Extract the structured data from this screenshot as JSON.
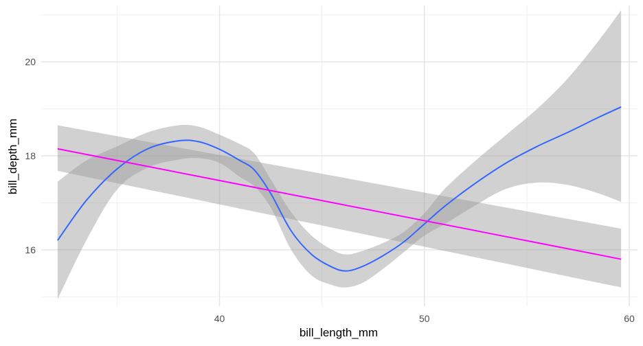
{
  "chart_data": {
    "type": "line",
    "title": "",
    "xlabel": "bill_length_mm",
    "ylabel": "bill_depth_mm",
    "xlim": [
      31.3,
      60.4
    ],
    "ylim": [
      14.8,
      21.2
    ],
    "x_major_ticks": [
      40,
      50,
      60
    ],
    "x_minor_ticks": [
      35,
      45,
      55
    ],
    "y_major_ticks": [
      16,
      18,
      20
    ],
    "y_minor_ticks": [
      15,
      17,
      19,
      21
    ],
    "x_tick_labels": [
      "40",
      "50",
      "60"
    ],
    "y_tick_labels": [
      "16",
      "18",
      "20"
    ],
    "grid": true,
    "legend": "none",
    "series": [
      {
        "kind": "loess",
        "color": "#3366FF",
        "band_color": "#999999",
        "x": [
          32.1,
          33.5,
          35.0,
          36.5,
          38.0,
          39.0,
          40.0,
          41.0,
          41.7,
          42.5,
          43.5,
          44.5,
          45.5,
          46.2,
          47.0,
          48.0,
          49.0,
          50.0,
          51.0,
          52.5,
          54.0,
          55.5,
          57.0,
          58.5,
          59.6
        ],
        "y": [
          16.2,
          17.05,
          17.72,
          18.15,
          18.32,
          18.3,
          18.14,
          17.9,
          17.7,
          17.2,
          16.4,
          15.9,
          15.63,
          15.55,
          15.65,
          15.88,
          16.17,
          16.55,
          16.93,
          17.42,
          17.85,
          18.2,
          18.5,
          18.82,
          19.04
        ],
        "ymin": [
          14.95,
          16.2,
          17.28,
          17.75,
          17.92,
          17.95,
          17.85,
          17.55,
          17.35,
          16.9,
          16.0,
          15.45,
          15.25,
          15.2,
          15.3,
          15.6,
          15.95,
          16.3,
          16.55,
          16.95,
          17.3,
          17.43,
          17.38,
          17.2,
          17.02
        ],
        "ymax": [
          17.45,
          17.9,
          18.2,
          18.5,
          18.65,
          18.62,
          18.45,
          18.25,
          18.05,
          17.5,
          16.8,
          16.3,
          16.0,
          15.9,
          15.98,
          16.15,
          16.38,
          16.78,
          17.3,
          17.9,
          18.45,
          19.0,
          19.65,
          20.45,
          21.1
        ]
      },
      {
        "kind": "lm",
        "color": "#FF00FF",
        "band_color": "#999999",
        "x": [
          32.1,
          59.6
        ],
        "y": [
          18.15,
          15.8
        ],
        "ymin": [
          17.68,
          15.2
        ],
        "ymax": [
          18.65,
          16.45
        ]
      }
    ]
  }
}
